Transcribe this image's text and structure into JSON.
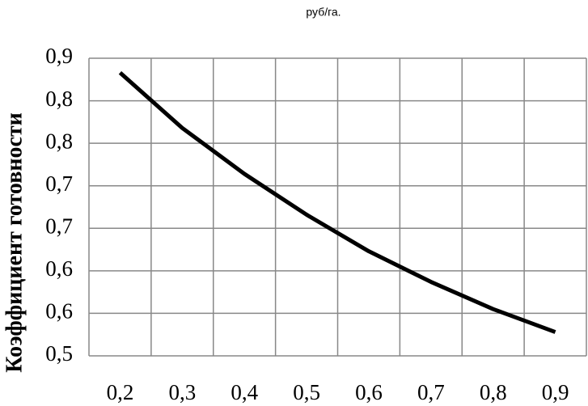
{
  "chart_data": {
    "type": "line",
    "title": "руб/га.",
    "y_label": "Коэффициент готовности",
    "categories": [
      "0,2",
      "0,3",
      "0,4",
      "0,5",
      "0,6",
      "0,7",
      "0,8",
      "0,9"
    ],
    "series": [
      {
        "name": "Коэффициент готовности",
        "color": "#000000",
        "values": [
          0.833,
          0.768,
          0.714,
          0.666,
          0.623,
          0.587,
          0.555,
          0.528
        ]
      }
    ],
    "ylim": [
      0.5,
      0.85
    ],
    "yticks": [
      {
        "value": 0.5,
        "label": "0,5"
      },
      {
        "value": 0.55,
        "label": "0,6"
      },
      {
        "value": 0.6,
        "label": "0,6"
      },
      {
        "value": 0.65,
        "label": "0,7"
      },
      {
        "value": 0.7,
        "label": "0,7"
      },
      {
        "value": 0.75,
        "label": "0,8"
      },
      {
        "value": 0.8,
        "label": "0,8"
      },
      {
        "value": 0.85,
        "label": "0,9"
      }
    ],
    "grid": true
  }
}
